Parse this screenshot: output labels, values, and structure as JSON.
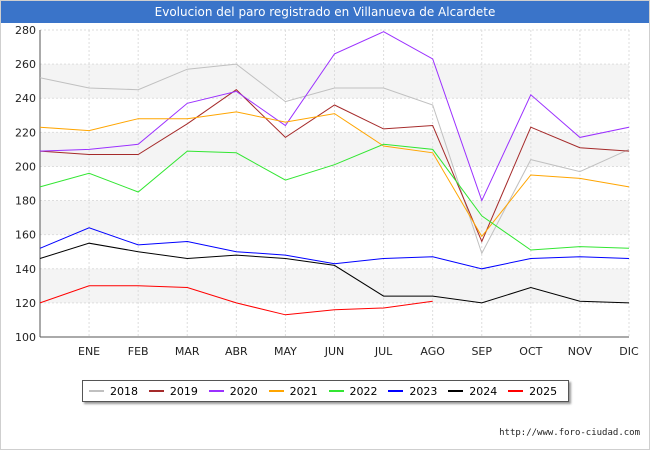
{
  "title": "Evolucion del paro registrado en Villanueva de Alcardete",
  "source": "http://www.foro-ciudad.com",
  "chart_data": {
    "type": "line",
    "title": "Evolucion del paro registrado en Villanueva de Alcardete",
    "xlabel": "",
    "ylabel": "",
    "categories": [
      "",
      "ENE",
      "FEB",
      "MAR",
      "ABR",
      "MAY",
      "JUN",
      "JUL",
      "AGO",
      "SEP",
      "OCT",
      "NOV",
      "DIC"
    ],
    "ylim": [
      100,
      280
    ],
    "yticks": [
      100,
      120,
      140,
      160,
      180,
      200,
      220,
      240,
      260,
      280
    ],
    "grid": true,
    "legend_position": "bottom",
    "series": [
      {
        "name": "2018",
        "color": "#c0c0c0",
        "values": [
          252,
          246,
          245,
          257,
          260,
          238,
          246,
          246,
          236,
          149,
          204,
          197,
          210
        ]
      },
      {
        "name": "2019",
        "color": "#a52a2a",
        "values": [
          209,
          207,
          207,
          225,
          245,
          217,
          236,
          222,
          224,
          156,
          223,
          211,
          209
        ]
      },
      {
        "name": "2020",
        "color": "#9b30ff",
        "values": [
          209,
          210,
          213,
          237,
          244,
          224,
          266,
          279,
          263,
          180,
          242,
          217,
          223
        ]
      },
      {
        "name": "2021",
        "color": "#ffa500",
        "values": [
          223,
          221,
          228,
          228,
          232,
          226,
          231,
          212,
          208,
          159,
          195,
          193,
          188
        ]
      },
      {
        "name": "2022",
        "color": "#32e632",
        "values": [
          188,
          196,
          185,
          209,
          208,
          192,
          201,
          213,
          210,
          171,
          151,
          153,
          152
        ]
      },
      {
        "name": "2023",
        "color": "#0000ff",
        "values": [
          152,
          164,
          154,
          156,
          150,
          148,
          143,
          146,
          147,
          140,
          146,
          147,
          146
        ]
      },
      {
        "name": "2024",
        "color": "#000000",
        "values": [
          146,
          155,
          150,
          146,
          148,
          146,
          142,
          124,
          124,
          120,
          129,
          121,
          120
        ]
      },
      {
        "name": "2025",
        "color": "#ff0000",
        "values": [
          120,
          130,
          130,
          129,
          120,
          113,
          116,
          117,
          121,
          null,
          null,
          null,
          null
        ]
      }
    ]
  }
}
